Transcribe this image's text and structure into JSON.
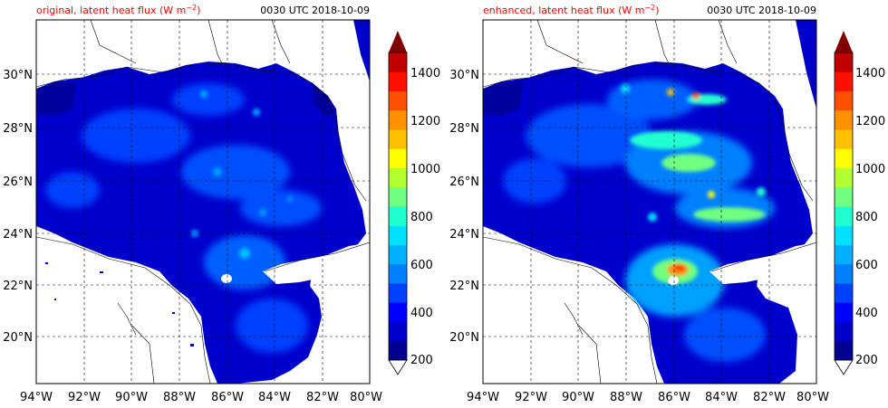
{
  "panels": [
    {
      "title_left": "original, latent heat flux (W m",
      "title_left_exp": "−2",
      "title_left_end": ")",
      "title_right": "0030 UTC 2018-10-09"
    },
    {
      "title_left": "enhanced, latent heat flux (W m",
      "title_left_exp": "−2",
      "title_left_end": ")",
      "title_right": "0030 UTC 2018-10-09"
    }
  ],
  "lat_ticks": [
    "30°N",
    "28°N",
    "26°N",
    "24°N",
    "22°N",
    "20°N"
  ],
  "lon_ticks": [
    "94°W",
    "92°W",
    "90°W",
    "88°W",
    "86°W",
    "84°W",
    "82°W",
    "80°W"
  ],
  "colorbar": {
    "labels": [
      "1400",
      "1200",
      "1000",
      "800",
      "600",
      "400",
      "200"
    ],
    "colors": [
      "#000090",
      "#0000cd",
      "#0000ff",
      "#0040ff",
      "#0080ff",
      "#00b0ff",
      "#00e0ff",
      "#20ffd0",
      "#70ff80",
      "#b0ff30",
      "#ffff00",
      "#ffc000",
      "#ff9000",
      "#ff5000",
      "#ff1000",
      "#c00000"
    ],
    "extend_max_color": "#800000"
  },
  "colors": {
    "ocean_base": "#0000cd",
    "land": "#ffffff",
    "title_accent": "#ff0000"
  }
}
